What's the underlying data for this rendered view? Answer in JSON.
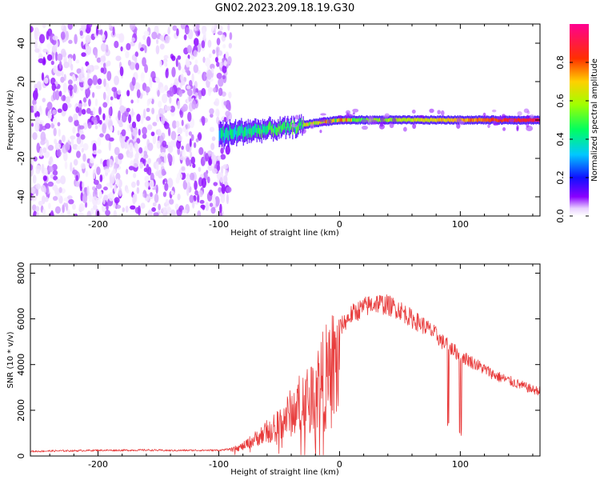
{
  "page_title": "GN02.2023.209.18.19.G30",
  "chart_data": [
    {
      "type": "heatmap",
      "xlabel": "Height of straight line (km)",
      "ylabel": "Frequency (Hz)",
      "xlim": [
        -256,
        166
      ],
      "ylim": [
        -50,
        50
      ],
      "xticks": [
        -200,
        -100,
        0,
        100
      ],
      "yticks": [
        -40,
        -20,
        0,
        20,
        40
      ],
      "grid": false,
      "colorbar": {
        "label": "Normalized spectral amplitude",
        "ticks": [
          "0.0",
          "0.2",
          "0.4",
          "0.6",
          "0.8"
        ],
        "tick_values": [
          0.0,
          0.2,
          0.4,
          0.6,
          0.8
        ],
        "range": [
          0,
          1
        ],
        "colormap": "rainbow (white-violet-blue-cyan-green-yellow-red-magenta)"
      },
      "regions": [
        {
          "x_range": [
            -256,
            -90
          ],
          "freq_range": [
            -50,
            50
          ],
          "amplitude_range": [
            0.0,
            0.1
          ],
          "description": "broadband low-amplitude noise (violet)"
        },
        {
          "x_range": [
            -100,
            -30
          ],
          "freq_center_start": -8,
          "freq_center_end": -3,
          "amplitude_range": [
            0.1,
            0.5
          ],
          "description": "signal acquisition, noisy"
        },
        {
          "x_range": [
            -30,
            166
          ],
          "freq_center": 0,
          "amplitude_range": [
            0.4,
            1.0
          ],
          "description": "narrow carrier near 0 Hz"
        }
      ],
      "ridge": [
        {
          "x": -100,
          "freq": -8
        },
        {
          "x": -80,
          "freq": -6
        },
        {
          "x": -60,
          "freq": -5
        },
        {
          "x": -40,
          "freq": -4
        },
        {
          "x": -25,
          "freq": -2
        },
        {
          "x": -15,
          "freq": -1
        },
        {
          "x": 0,
          "freq": 0
        },
        {
          "x": 50,
          "freq": 0
        },
        {
          "x": 100,
          "freq": 0
        },
        {
          "x": 166,
          "freq": 0
        }
      ]
    },
    {
      "type": "line",
      "xlabel": "Height of straight line (km)",
      "ylabel": "SNR (10 * v/v)",
      "xlim": [
        -256,
        166
      ],
      "ylim": [
        0,
        8400
      ],
      "xticks": [
        -200,
        -100,
        0,
        100
      ],
      "yticks": [
        0,
        2000,
        4000,
        6000,
        8000
      ],
      "grid": false,
      "color": "#e83c3c",
      "series": [
        {
          "x": [
            -256,
            -240,
            -220,
            -200,
            -180,
            -160,
            -140,
            -120,
            -100,
            -90,
            -80,
            -70,
            -60,
            -50,
            -40,
            -30,
            -20,
            -10,
            0,
            10,
            20,
            30,
            40,
            50,
            60,
            70,
            80,
            85,
            90,
            95,
            100,
            110,
            120,
            130,
            140,
            150,
            160,
            166
          ],
          "y": [
            200,
            220,
            230,
            250,
            250,
            260,
            240,
            250,
            250,
            300,
            500,
            900,
            1300,
            1800,
            2400,
            3100,
            3800,
            4600,
            5600,
            6200,
            6500,
            6700,
            6600,
            6400,
            6000,
            5700,
            5300,
            5000,
            4800,
            4600,
            4400,
            4100,
            3800,
            3500,
            3300,
            3100,
            2900,
            2850
          ]
        }
      ],
      "dropouts": [
        {
          "x": 90,
          "y": 1200
        },
        {
          "x": 100,
          "y": 800
        }
      ]
    }
  ]
}
